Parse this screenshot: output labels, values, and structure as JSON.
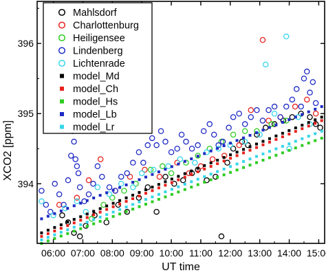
{
  "chart_data": {
    "type": "scatter",
    "xlabel": "UT time",
    "ylabel": "XCO2 [ppm]",
    "xlim": [
      5.45,
      15.2
    ],
    "ylim": [
      393.15,
      396.6
    ],
    "xticks": [
      6,
      7,
      8,
      9,
      10,
      11,
      12,
      13,
      14,
      15
    ],
    "xtick_labels": [
      "06:00",
      "07:00",
      "08:00",
      "09:00",
      "10:00",
      "11:00",
      "12:00",
      "13:00",
      "14:00",
      "15:00"
    ],
    "yticks": [
      394,
      395,
      396
    ],
    "ytick_labels": [
      "394",
      "395",
      "396"
    ],
    "legend_position": "top-left",
    "grid": false,
    "series": [
      {
        "name": "Mahlsdorf",
        "marker": "open-circle",
        "color": "#000000",
        "points": [
          [
            6.3,
            393.55
          ],
          [
            6.5,
            393.45
          ],
          [
            6.7,
            393.3
          ],
          [
            6.9,
            393.25
          ],
          [
            7.1,
            393.4
          ],
          [
            7.4,
            393.55
          ],
          [
            7.8,
            393.45
          ],
          [
            8.2,
            393.7
          ],
          [
            8.5,
            393.6
          ],
          [
            8.9,
            393.8
          ],
          [
            9.2,
            393.95
          ],
          [
            9.5,
            393.6
          ],
          [
            9.8,
            394.1
          ],
          [
            10.1,
            394.0
          ],
          [
            10.4,
            394.05
          ],
          [
            10.7,
            394.15
          ],
          [
            10.9,
            394.2
          ],
          [
            11.2,
            394.05
          ],
          [
            11.5,
            394.1
          ],
          [
            11.7,
            393.25
          ],
          [
            11.9,
            394.3
          ],
          [
            12.1,
            394.5
          ],
          [
            12.4,
            394.6
          ],
          [
            12.6,
            394.55
          ],
          [
            12.9,
            394.7
          ],
          [
            13.2,
            394.8
          ],
          [
            13.5,
            394.85
          ],
          [
            13.8,
            394.9
          ],
          [
            14.1,
            394.95
          ],
          [
            14.4,
            395.0
          ],
          [
            14.7,
            394.95
          ],
          [
            14.9,
            394.85
          ],
          [
            15.05,
            394.8
          ]
        ]
      },
      {
        "name": "Charlottenburg",
        "marker": "open-circle",
        "color": "#e8231e",
        "points": [
          [
            6.2,
            393.7
          ],
          [
            6.8,
            393.8
          ],
          [
            7.2,
            394.05
          ],
          [
            7.6,
            394.35
          ],
          [
            8.1,
            393.9
          ],
          [
            8.6,
            394.1
          ],
          [
            9.1,
            394.2
          ],
          [
            9.6,
            394.1
          ],
          [
            10.2,
            394.3
          ],
          [
            10.6,
            394.15
          ],
          [
            11.0,
            394.25
          ],
          [
            11.4,
            394.35
          ],
          [
            11.8,
            394.4
          ],
          [
            12.3,
            394.55
          ],
          [
            12.7,
            395.05
          ],
          [
            13.1,
            396.05
          ],
          [
            13.3,
            394.9
          ],
          [
            13.7,
            394.95
          ],
          [
            14.2,
            395.1
          ],
          [
            14.6,
            395.2
          ],
          [
            14.9,
            395.0
          ]
        ]
      },
      {
        "name": "Heiligensee",
        "marker": "open-circle",
        "color": "#2ecc21",
        "points": [
          [
            7.3,
            393.5
          ],
          [
            7.7,
            393.7
          ],
          [
            8.0,
            393.8
          ],
          [
            8.4,
            393.9
          ],
          [
            8.8,
            394.0
          ],
          [
            9.3,
            394.2
          ],
          [
            9.7,
            394.25
          ],
          [
            10.0,
            394.15
          ],
          [
            10.5,
            394.3
          ],
          [
            10.9,
            394.4
          ],
          [
            11.3,
            394.5
          ],
          [
            11.7,
            394.6
          ],
          [
            12.1,
            394.7
          ],
          [
            12.5,
            394.75
          ],
          [
            12.9,
            394.75
          ],
          [
            13.4,
            394.85
          ],
          [
            13.9,
            394.9
          ]
        ]
      },
      {
        "name": "Lindenberg",
        "marker": "open-circle",
        "color": "#1f2bc4",
        "points": [
          [
            5.6,
            393.9
          ],
          [
            5.75,
            393.7
          ],
          [
            5.9,
            393.6
          ],
          [
            6.05,
            394.0
          ],
          [
            6.2,
            393.85
          ],
          [
            6.35,
            393.7
          ],
          [
            6.5,
            394.05
          ],
          [
            6.6,
            394.4
          ],
          [
            6.65,
            394.75
          ],
          [
            6.7,
            394.6
          ],
          [
            6.75,
            394.35
          ],
          [
            6.8,
            394.25
          ],
          [
            6.85,
            394.15
          ],
          [
            6.9,
            393.95
          ],
          [
            7.05,
            393.75
          ],
          [
            7.2,
            393.85
          ],
          [
            7.35,
            394.0
          ],
          [
            7.5,
            394.25
          ],
          [
            7.65,
            394.1
          ],
          [
            7.9,
            393.95
          ],
          [
            8.1,
            393.9
          ],
          [
            8.3,
            394.1
          ],
          [
            8.5,
            394.15
          ],
          [
            8.7,
            394.3
          ],
          [
            8.9,
            394.45
          ],
          [
            9.05,
            394.3
          ],
          [
            9.2,
            394.55
          ],
          [
            9.35,
            394.65
          ],
          [
            9.5,
            394.55
          ],
          [
            9.65,
            394.75
          ],
          [
            9.8,
            394.6
          ],
          [
            10.0,
            394.45
          ],
          [
            10.2,
            394.5
          ],
          [
            10.35,
            394.7
          ],
          [
            10.5,
            394.6
          ],
          [
            10.7,
            394.5
          ],
          [
            10.9,
            394.55
          ],
          [
            11.1,
            394.75
          ],
          [
            11.3,
            394.85
          ],
          [
            11.45,
            394.7
          ],
          [
            11.6,
            394.55
          ],
          [
            11.75,
            394.6
          ],
          [
            11.95,
            394.8
          ],
          [
            12.1,
            394.95
          ],
          [
            12.3,
            395.0
          ],
          [
            12.5,
            394.85
          ],
          [
            12.7,
            394.95
          ],
          [
            12.9,
            395.05
          ],
          [
            13.1,
            394.9
          ],
          [
            13.3,
            395.05
          ],
          [
            13.5,
            395.1
          ],
          [
            13.7,
            394.95
          ],
          [
            13.9,
            395.1
          ],
          [
            14.1,
            395.2
          ],
          [
            14.25,
            395.35
          ],
          [
            14.4,
            395.1
          ],
          [
            14.5,
            395.5
          ],
          [
            14.6,
            395.6
          ],
          [
            14.7,
            395.3
          ],
          [
            14.8,
            395.45
          ],
          [
            14.9,
            395.15
          ]
        ]
      },
      {
        "name": "Lichtenrade",
        "marker": "open-circle",
        "color": "#37d6e8",
        "points": [
          [
            5.6,
            393.75
          ],
          [
            6.0,
            393.55
          ],
          [
            6.4,
            393.65
          ],
          [
            6.8,
            393.75
          ],
          [
            7.1,
            393.6
          ],
          [
            7.5,
            393.95
          ],
          [
            7.9,
            393.85
          ],
          [
            8.3,
            394.0
          ],
          [
            8.7,
            393.95
          ],
          [
            9.0,
            394.15
          ],
          [
            9.4,
            394.2
          ],
          [
            9.9,
            394.25
          ],
          [
            10.3,
            394.35
          ],
          [
            10.8,
            394.3
          ],
          [
            11.2,
            394.45
          ],
          [
            11.6,
            394.5
          ],
          [
            12.0,
            394.55
          ],
          [
            12.5,
            394.6
          ],
          [
            13.0,
            394.7
          ],
          [
            13.2,
            395.7
          ],
          [
            13.5,
            395.0
          ],
          [
            13.9,
            396.1
          ],
          [
            14.0,
            394.5
          ],
          [
            14.3,
            394.95
          ],
          [
            14.7,
            394.85
          ]
        ]
      },
      {
        "name": "model_Md",
        "marker": "filled-square",
        "color": "#000000",
        "x_start": 5.6,
        "x_end": 15.1,
        "y_start": 393.3,
        "y_end": 394.95
      },
      {
        "name": "model_Ch",
        "marker": "filled-square",
        "color": "#e8231e",
        "x_start": 5.6,
        "x_end": 15.1,
        "y_start": 393.25,
        "y_end": 394.9
      },
      {
        "name": "model_Hs",
        "marker": "filled-square",
        "color": "#2ecc21",
        "x_start": 5.6,
        "x_end": 15.1,
        "y_start": 393.15,
        "y_end": 394.65
      },
      {
        "name": "model_Lb",
        "marker": "filled-square",
        "color": "#1f2bc4",
        "x_start": 5.6,
        "x_end": 15.1,
        "y_start": 393.5,
        "y_end": 395.1
      },
      {
        "name": "model_Lr",
        "marker": "filled-square",
        "color": "#37d6e8",
        "x_start": 5.6,
        "x_end": 15.1,
        "y_start": 393.2,
        "y_end": 394.75
      }
    ]
  }
}
